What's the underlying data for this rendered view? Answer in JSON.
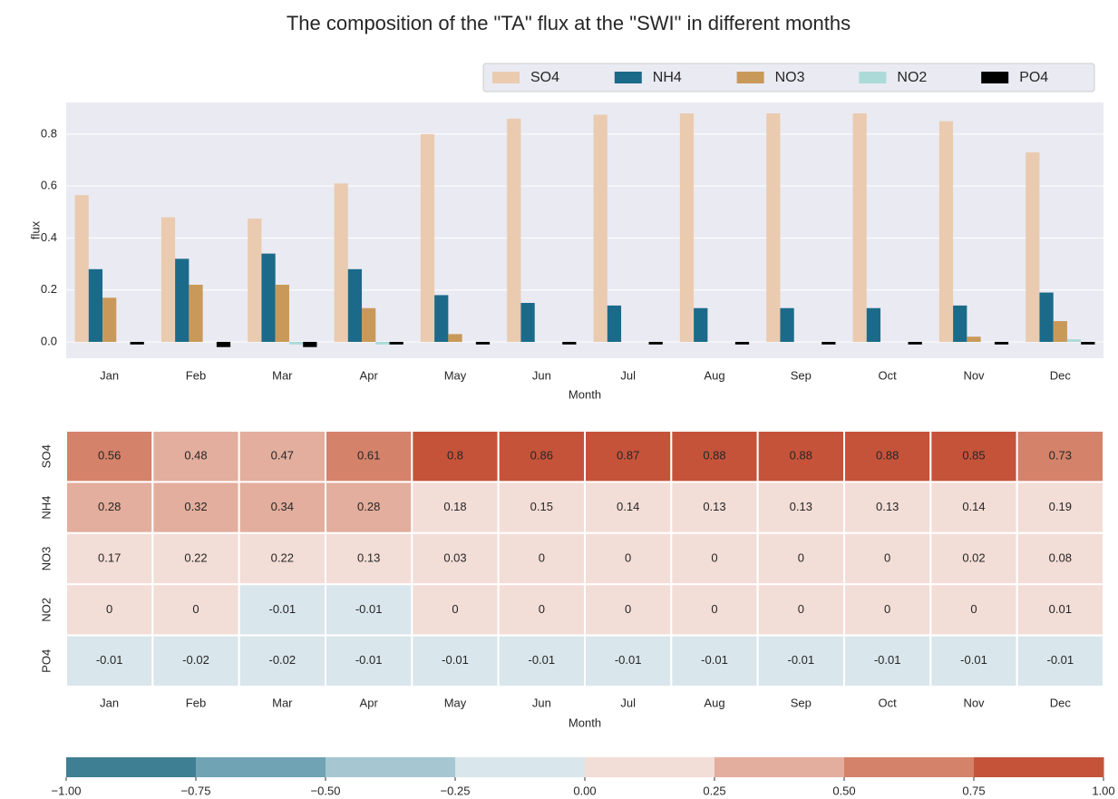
{
  "chart_data": [
    {
      "type": "bar",
      "title": "The composition of the \"TA\"  flux at the \"SWI\"  in different months",
      "xlabel": "Month",
      "ylabel": "flux",
      "categories": [
        "Jan",
        "Feb",
        "Mar",
        "Apr",
        "May",
        "Jun",
        "Jul",
        "Aug",
        "Sep",
        "Oct",
        "Nov",
        "Dec"
      ],
      "series": [
        {
          "name": "SO4",
          "color": "#eacbb0",
          "values": [
            0.565,
            0.48,
            0.475,
            0.61,
            0.8,
            0.86,
            0.875,
            0.88,
            0.88,
            0.88,
            0.85,
            0.73
          ]
        },
        {
          "name": "NH4",
          "color": "#1b6a8a",
          "values": [
            0.28,
            0.32,
            0.34,
            0.28,
            0.18,
            0.15,
            0.14,
            0.13,
            0.13,
            0.13,
            0.14,
            0.19
          ]
        },
        {
          "name": "NO3",
          "color": "#c9995a",
          "values": [
            0.17,
            0.22,
            0.22,
            0.13,
            0.03,
            0,
            0,
            0,
            0,
            0,
            0.02,
            0.08
          ]
        },
        {
          "name": "NO2",
          "color": "#abdad8",
          "values": [
            0,
            0,
            -0.01,
            -0.01,
            0,
            0,
            0,
            0,
            0,
            0,
            0,
            0.01
          ]
        },
        {
          "name": "PO4",
          "color": "#000000",
          "values": [
            -0.01,
            -0.02,
            -0.02,
            -0.01,
            -0.01,
            -0.01,
            -0.01,
            -0.01,
            -0.01,
            -0.01,
            -0.01,
            -0.01
          ]
        }
      ],
      "ylim": [
        -0.063,
        0.922
      ],
      "yticks": [
        {
          "value": 0,
          "label": "0.0"
        },
        0.2,
        0.4,
        0.6,
        0.8
      ],
      "grid": true,
      "legend": "upper right"
    },
    {
      "type": "heatmap",
      "xlabel": "Month",
      "categories": [
        "Jan",
        "Feb",
        "Mar",
        "Apr",
        "May",
        "Jun",
        "Jul",
        "Aug",
        "Sep",
        "Oct",
        "Nov",
        "Dec"
      ],
      "rows": [
        "SO4",
        "NH4",
        "NO3",
        "NO2",
        "PO4"
      ],
      "values": [
        [
          0.56,
          0.48,
          0.47,
          0.61,
          0.8,
          0.86,
          0.87,
          0.88,
          0.88,
          0.88,
          0.85,
          0.73
        ],
        [
          0.28,
          0.32,
          0.34,
          0.28,
          0.18,
          0.15,
          0.14,
          0.13,
          0.13,
          0.13,
          0.14,
          0.19
        ],
        [
          0.17,
          0.22,
          0.22,
          0.13,
          0.03,
          0,
          0,
          0,
          0,
          0,
          0.02,
          0.08
        ],
        [
          0,
          0,
          -0.01,
          -0.01,
          0,
          0,
          0,
          0,
          0,
          0,
          0,
          0.01
        ],
        [
          -0.01,
          -0.02,
          -0.02,
          -0.01,
          -0.01,
          -0.01,
          -0.01,
          -0.01,
          -0.01,
          -0.01,
          -0.01,
          -0.01
        ]
      ],
      "clim": [
        -1,
        1
      ],
      "colors": [
        "#3f7f93",
        "#70a3b3",
        "#a6c7d1",
        "#d9e6ec",
        "#f3ddd7",
        "#e3ae9d",
        "#d4826a",
        "#c5533a"
      ],
      "colorbar_ticks": [
        {
          "value": -1,
          "label": "−1.00"
        },
        {
          "value": -0.75,
          "label": "−0.75"
        },
        {
          "value": -0.5,
          "label": "−0.50"
        },
        {
          "value": -0.25,
          "label": "−0.25"
        },
        {
          "value": 0,
          "label": "0.00"
        },
        {
          "value": 0.25,
          "label": "0.25"
        },
        {
          "value": 0.5,
          "label": "0.50"
        },
        {
          "value": 0.75,
          "label": "0.75"
        },
        {
          "value": 1,
          "label": "1.00"
        }
      ]
    }
  ]
}
